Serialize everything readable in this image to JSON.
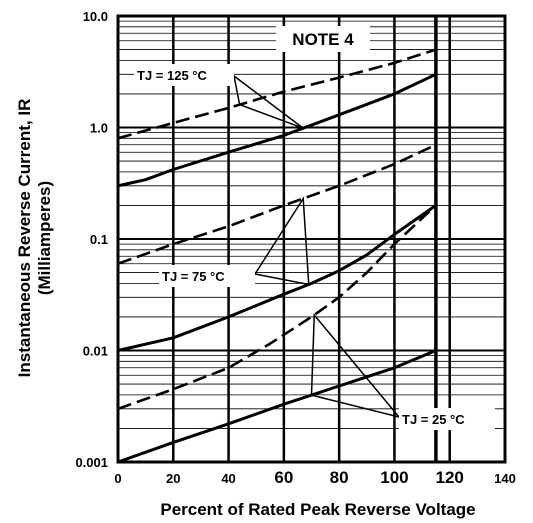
{
  "chart_data": {
    "type": "line",
    "title": "",
    "xlabel": "Percent of Rated Peak Reverse Voltage",
    "ylabel_line1": "Instantaneous Reverse Current, IR",
    "ylabel_line2": "(Milliamperes)",
    "xlim": [
      0,
      140
    ],
    "ylim": [
      0.001,
      10
    ],
    "yscale": "log",
    "grid": true,
    "x_ticks": [
      "0",
      "20",
      "40",
      "60",
      "80",
      "100",
      "120",
      "140"
    ],
    "y_ticks": [
      "0.001",
      "0.01",
      "0.1",
      "1.0",
      "10.0"
    ],
    "vertical_limit_x": 115,
    "note": "NOTE 4",
    "annotations": [
      {
        "text": "TJ = 125 °C"
      },
      {
        "text": "TJ = 75 °C"
      },
      {
        "text": "TJ = 25 °C"
      }
    ],
    "series": [
      {
        "group": "TJ = 125 °C",
        "style": "dashed",
        "x": [
          0,
          20,
          40,
          60,
          80,
          100,
          115
        ],
        "y": [
          0.8,
          1.1,
          1.5,
          2.1,
          2.8,
          3.8,
          5.0
        ]
      },
      {
        "group": "TJ = 125 °C",
        "style": "solid",
        "x": [
          0,
          10,
          20,
          40,
          60,
          80,
          100,
          115
        ],
        "y": [
          0.3,
          0.34,
          0.42,
          0.6,
          0.85,
          1.3,
          2.0,
          3.0
        ]
      },
      {
        "group": "TJ = 75 °C",
        "style": "dashed",
        "x": [
          0,
          20,
          40,
          60,
          80,
          100,
          115
        ],
        "y": [
          0.06,
          0.09,
          0.13,
          0.2,
          0.3,
          0.47,
          0.7
        ]
      },
      {
        "group": "TJ = 75 °C",
        "style": "solid",
        "x": [
          0,
          20,
          40,
          60,
          70,
          80,
          90,
          100,
          115
        ],
        "y": [
          0.01,
          0.013,
          0.02,
          0.032,
          0.04,
          0.052,
          0.072,
          0.11,
          0.2
        ]
      },
      {
        "group": "TJ = 25 °C",
        "style": "dashed",
        "x": [
          0,
          20,
          40,
          55,
          70,
          80,
          90,
          100,
          115
        ],
        "y": [
          0.003,
          0.0045,
          0.007,
          0.0115,
          0.02,
          0.03,
          0.05,
          0.09,
          0.2
        ]
      },
      {
        "group": "TJ = 25 °C",
        "style": "solid",
        "x": [
          0,
          20,
          40,
          60,
          80,
          100,
          115
        ],
        "y": [
          0.001,
          0.0015,
          0.0022,
          0.0033,
          0.0048,
          0.007,
          0.01
        ]
      }
    ]
  }
}
